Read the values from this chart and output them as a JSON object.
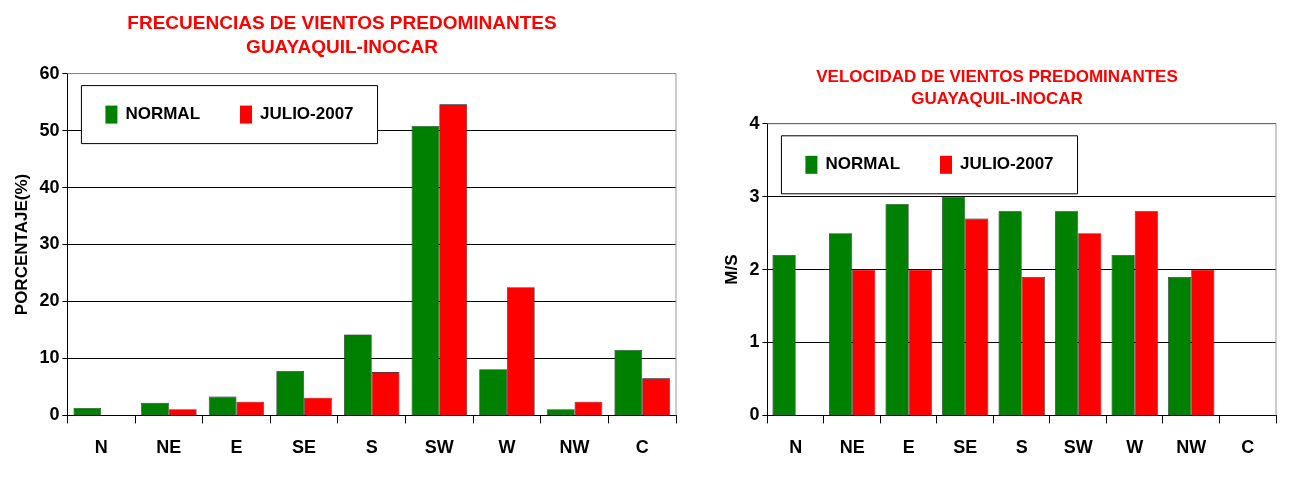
{
  "chart_data": [
    {
      "type": "bar",
      "title": "FRECUENCIAS DE VIENTOS PREDOMINANTES",
      "subtitle": "GUAYAQUIL-INOCAR",
      "ylabel": "PORCENTAJE(%)",
      "categories": [
        "N",
        "NE",
        "E",
        "SE",
        "S",
        "SW",
        "W",
        "NW",
        "C"
      ],
      "series": [
        {
          "name": "NORMAL",
          "color": "#008000",
          "values": [
            1.3,
            2.2,
            3.3,
            7.8,
            14.2,
            50.8,
            8.1,
            1.1,
            11.5
          ]
        },
        {
          "name": "JULIO-2007",
          "color": "#ff0000",
          "values": [
            null,
            1.1,
            2.4,
            3.1,
            7.6,
            54.6,
            22.5,
            2.4,
            6.5
          ]
        }
      ],
      "ylim": [
        0,
        60
      ],
      "yticks": [
        0,
        10,
        20,
        30,
        40,
        50,
        60
      ],
      "grid": "y",
      "legend": "top left"
    },
    {
      "type": "bar",
      "title": "VELOCIDAD DE VIENTOS PREDOMINANTES",
      "subtitle": "GUAYAQUIL-INOCAR",
      "ylabel": "M/S",
      "categories": [
        "N",
        "NE",
        "E",
        "SE",
        "S",
        "SW",
        "W",
        "NW",
        "C"
      ],
      "series": [
        {
          "name": "NORMAL",
          "color": "#008000",
          "values": [
            2.2,
            2.5,
            2.9,
            3.0,
            2.8,
            2.8,
            2.2,
            1.9,
            null
          ]
        },
        {
          "name": "JULIO-2007",
          "color": "#ff0000",
          "values": [
            null,
            2.0,
            2.0,
            2.7,
            1.9,
            2.5,
            2.8,
            2.0,
            null
          ]
        }
      ],
      "ylim": [
        0,
        4
      ],
      "yticks": [
        0,
        1,
        2,
        3,
        4
      ],
      "grid": "y",
      "legend": "top left"
    }
  ]
}
